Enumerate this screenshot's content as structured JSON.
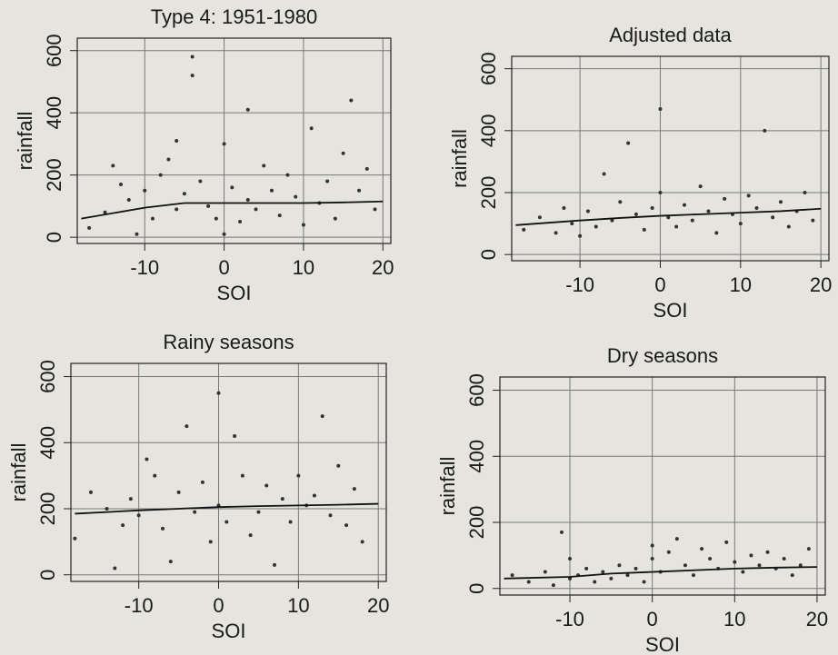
{
  "chart_data": [
    {
      "type": "scatter",
      "title": "Type 4: 1951-1980",
      "x_label": "SOI",
      "y_label": "rainfall",
      "xlim": [
        -18.5,
        21
      ],
      "ylim": [
        -20,
        640
      ],
      "xticks": [
        -10,
        0,
        10,
        20
      ],
      "yticks": [
        0,
        200,
        400,
        600
      ],
      "grid": true,
      "color": "#333333",
      "x": [
        -17,
        -15,
        -14,
        -12,
        -11,
        -10,
        -9,
        -8,
        -7,
        -6,
        -5,
        -4,
        -4,
        -3,
        -2,
        -1,
        0,
        0,
        1,
        2,
        3,
        4,
        5,
        6,
        7,
        8,
        9,
        10,
        11,
        12,
        13,
        14,
        15,
        16,
        17,
        18,
        19,
        -13,
        -6,
        3
      ],
      "values": [
        30,
        80,
        230,
        120,
        10,
        150,
        60,
        200,
        250,
        90,
        140,
        520,
        580,
        180,
        100,
        60,
        300,
        10,
        160,
        50,
        120,
        90,
        230,
        150,
        70,
        200,
        130,
        40,
        350,
        110,
        180,
        60,
        270,
        440,
        150,
        220,
        90,
        170,
        310,
        410
      ],
      "trend": {
        "x": [
          -18,
          -10,
          -5,
          0,
          5,
          10,
          15,
          20
        ],
        "values": [
          60,
          95,
          110,
          110,
          110,
          110,
          112,
          115
        ]
      }
    },
    {
      "type": "scatter",
      "title": "Adjusted data",
      "x_label": "SOI",
      "y_label": "rainfall",
      "xlim": [
        -18.5,
        21
      ],
      "ylim": [
        -20,
        640
      ],
      "xticks": [
        -10,
        0,
        10,
        20
      ],
      "yticks": [
        0,
        200,
        400,
        600
      ],
      "grid": true,
      "color": "#333333",
      "x": [
        -17,
        -15,
        -13,
        -12,
        -11,
        -10,
        -9,
        -8,
        -7,
        -6,
        -5,
        -4,
        -3,
        -2,
        -1,
        0,
        0,
        1,
        2,
        3,
        4,
        5,
        6,
        7,
        8,
        9,
        10,
        11,
        12,
        13,
        14,
        15,
        16,
        17,
        18,
        19
      ],
      "values": [
        80,
        120,
        70,
        150,
        100,
        60,
        140,
        90,
        260,
        110,
        170,
        360,
        130,
        80,
        150,
        470,
        200,
        120,
        90,
        160,
        110,
        220,
        140,
        70,
        180,
        130,
        100,
        190,
        150,
        400,
        120,
        170,
        90,
        140,
        200,
        110
      ],
      "trend": {
        "x": [
          -18,
          -10,
          -5,
          0,
          5,
          10,
          15,
          20
        ],
        "values": [
          95,
          110,
          118,
          125,
          130,
          135,
          140,
          148
        ]
      }
    },
    {
      "type": "scatter",
      "title": "Rainy seasons",
      "x_label": "SOI",
      "y_label": "rainfall",
      "xlim": [
        -18.5,
        21
      ],
      "ylim": [
        -20,
        640
      ],
      "xticks": [
        -10,
        0,
        10,
        20
      ],
      "yticks": [
        0,
        200,
        400,
        600
      ],
      "grid": true,
      "color": "#333333",
      "x": [
        -18,
        -16,
        -14,
        -13,
        -12,
        -11,
        -10,
        -9,
        -8,
        -7,
        -6,
        -5,
        -4,
        -3,
        -2,
        -1,
        0,
        0,
        1,
        2,
        3,
        4,
        5,
        6,
        7,
        8,
        9,
        10,
        11,
        12,
        13,
        14,
        15,
        16,
        17,
        18
      ],
      "values": [
        110,
        250,
        200,
        20,
        150,
        230,
        180,
        350,
        300,
        140,
        40,
        250,
        450,
        190,
        280,
        100,
        550,
        210,
        160,
        420,
        300,
        120,
        190,
        270,
        30,
        230,
        160,
        300,
        210,
        240,
        480,
        180,
        330,
        150,
        260,
        100
      ],
      "trend": {
        "x": [
          -18,
          -10,
          -5,
          0,
          5,
          10,
          15,
          20
        ],
        "values": [
          185,
          195,
          200,
          205,
          208,
          210,
          212,
          215
        ]
      }
    },
    {
      "type": "scatter",
      "title": "Dry seasons",
      "x_label": "SOI",
      "y_label": "rainfall",
      "xlim": [
        -18.5,
        21
      ],
      "ylim": [
        -20,
        640
      ],
      "xticks": [
        -10,
        0,
        10,
        20
      ],
      "yticks": [
        0,
        200,
        400,
        600
      ],
      "grid": true,
      "color": "#333333",
      "x": [
        -17,
        -15,
        -13,
        -12,
        -11,
        -10,
        -10,
        -9,
        -8,
        -7,
        -6,
        -5,
        -4,
        -3,
        -2,
        -1,
        0,
        0,
        1,
        2,
        3,
        4,
        5,
        6,
        7,
        8,
        9,
        10,
        11,
        12,
        13,
        14,
        15,
        16,
        17,
        18,
        19
      ],
      "values": [
        40,
        20,
        50,
        10,
        170,
        30,
        90,
        40,
        60,
        20,
        50,
        30,
        70,
        40,
        60,
        20,
        90,
        130,
        50,
        110,
        150,
        70,
        40,
        120,
        90,
        60,
        140,
        80,
        50,
        100,
        70,
        110,
        60,
        90,
        40,
        70,
        120
      ],
      "trend": {
        "x": [
          -18,
          -10,
          -5,
          0,
          5,
          10,
          15,
          20
        ],
        "values": [
          30,
          35,
          45,
          50,
          55,
          60,
          63,
          65
        ]
      }
    }
  ]
}
